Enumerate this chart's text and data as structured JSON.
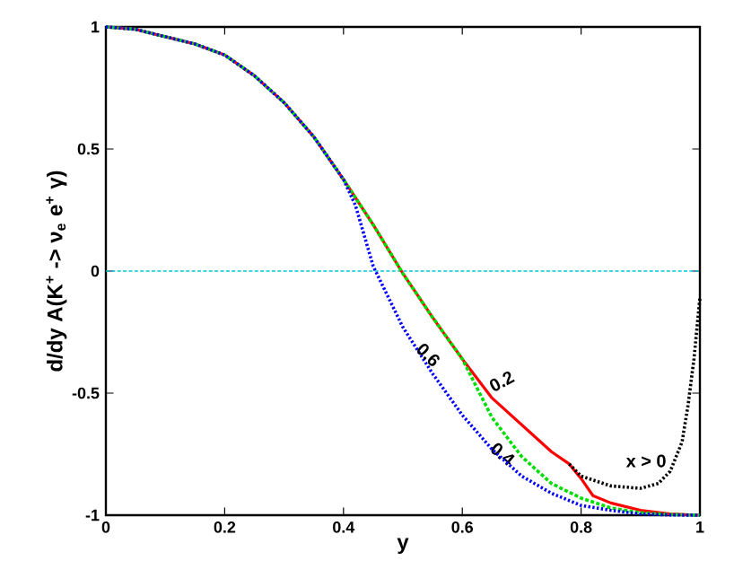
{
  "chart_data": {
    "type": "line",
    "xlabel": "y",
    "ylabel": "d/dy A(K$^{+}$ -> ν$_{e}$ e$^{+}$ γ)",
    "xlim": [
      0,
      1
    ],
    "ylim": [
      -1,
      1
    ],
    "xticks": [
      0,
      0.2,
      0.4,
      0.6,
      0.8,
      1
    ],
    "yticks": [
      -1,
      -0.5,
      0,
      0.5,
      1
    ],
    "grid": false,
    "marker": "none",
    "ref_lines": [
      {
        "axis": "y",
        "value": 0,
        "color": "#00c8d8",
        "line_style": "dashed"
      }
    ],
    "series": [
      {
        "name": "0.2",
        "color": "#ff0000",
        "line_style": "solid",
        "x": [
          0,
          0.05,
          0.1,
          0.15,
          0.2,
          0.25,
          0.3,
          0.35,
          0.4,
          0.45,
          0.5,
          0.55,
          0.6,
          0.65,
          0.7,
          0.75,
          0.78,
          0.8,
          0.82,
          0.85,
          0.9,
          0.95,
          1
        ],
        "values": [
          1,
          0.99,
          0.96,
          0.93,
          0.885,
          0.8,
          0.69,
          0.55,
          0.375,
          0.19,
          -0.01,
          -0.19,
          -0.36,
          -0.52,
          -0.63,
          -0.74,
          -0.79,
          -0.85,
          -0.92,
          -0.95,
          -0.98,
          -0.995,
          -1
        ]
      },
      {
        "name": "0.4",
        "color": "#00dd00",
        "line_style": "dashed",
        "x": [
          0,
          0.05,
          0.1,
          0.15,
          0.2,
          0.25,
          0.3,
          0.35,
          0.4,
          0.45,
          0.5,
          0.55,
          0.6,
          0.65,
          0.7,
          0.75,
          0.8,
          0.85,
          0.9,
          0.95,
          1
        ],
        "values": [
          1,
          0.99,
          0.96,
          0.93,
          0.885,
          0.8,
          0.69,
          0.55,
          0.375,
          0.19,
          -0.01,
          -0.19,
          -0.36,
          -0.6,
          -0.76,
          -0.87,
          -0.93,
          -0.97,
          -0.99,
          -0.997,
          -1
        ]
      },
      {
        "name": "0.6",
        "color": "#0000ff",
        "line_style": "dotted",
        "x": [
          0,
          0.05,
          0.1,
          0.15,
          0.2,
          0.25,
          0.3,
          0.35,
          0.4,
          0.42,
          0.45,
          0.5,
          0.55,
          0.6,
          0.65,
          0.7,
          0.75,
          0.8,
          0.85,
          0.9,
          0.95,
          1
        ],
        "values": [
          1,
          0.99,
          0.96,
          0.93,
          0.885,
          0.8,
          0.69,
          0.55,
          0.375,
          0.27,
          0.02,
          -0.23,
          -0.42,
          -0.59,
          -0.73,
          -0.84,
          -0.91,
          -0.96,
          -0.98,
          -0.995,
          -0.999,
          -1
        ]
      },
      {
        "name": "x > 0",
        "color": "#000000",
        "line_style": "dotted",
        "x": [
          0.78,
          0.8,
          0.85,
          0.9,
          0.93,
          0.95,
          0.97,
          0.98,
          0.99,
          1
        ],
        "values": [
          -0.79,
          -0.84,
          -0.88,
          -0.89,
          -0.87,
          -0.82,
          -0.7,
          -0.55,
          -0.36,
          -0.11
        ]
      }
    ]
  }
}
